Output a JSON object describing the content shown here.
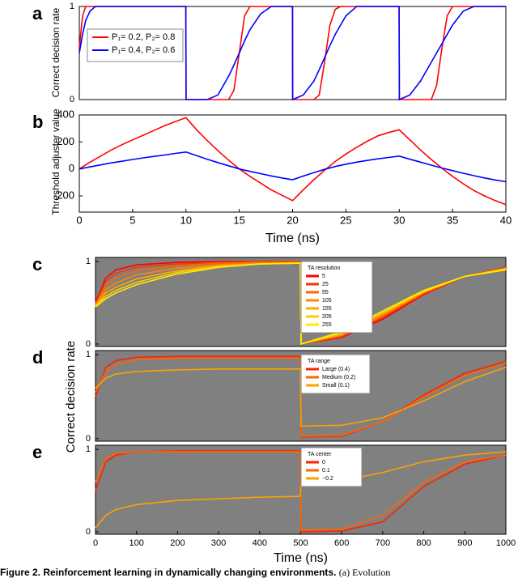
{
  "chart_data": [
    {
      "type": "line",
      "panel": "a",
      "ylabel": "Correct decision rate",
      "x": [
        0,
        0.3,
        0.6,
        1,
        1.5,
        2,
        5,
        9.99,
        10.01,
        12,
        13,
        14,
        14.5,
        15,
        15.5,
        16,
        17,
        18,
        19.99,
        20.01,
        21,
        22,
        22.5,
        23,
        23.5,
        24,
        24.5,
        25,
        26,
        29.99,
        30.01,
        31,
        32,
        33,
        33.5,
        34,
        34.5,
        35,
        36,
        37,
        40
      ],
      "xlim": [
        0,
        40
      ],
      "ylim": [
        0,
        1
      ],
      "yticks": [
        0,
        1
      ],
      "series": [
        {
          "name": "P₁= 0.2, P₂= 0.8",
          "color": "#ff0000",
          "values": [
            0.55,
            0.9,
            1,
            1,
            1,
            1,
            1,
            1,
            0,
            0,
            0,
            0,
            0.1,
            0.5,
            0.9,
            1,
            1,
            1,
            1,
            0,
            0,
            0,
            0.05,
            0.4,
            0.8,
            0.97,
            1,
            1,
            1,
            1,
            0,
            0,
            0,
            0,
            0.15,
            0.55,
            0.9,
            1,
            1,
            1,
            1
          ]
        },
        {
          "name": "P₁= 0.4, P₂= 0.6",
          "color": "#0000ff",
          "values": [
            0.5,
            0.7,
            0.85,
            0.95,
            1,
            1,
            1,
            1,
            0,
            0,
            0.05,
            0.25,
            0.37,
            0.5,
            0.63,
            0.75,
            0.92,
            1,
            1,
            0,
            0.05,
            0.2,
            0.32,
            0.45,
            0.58,
            0.7,
            0.8,
            0.9,
            1,
            1,
            0,
            0.05,
            0.2,
            0.4,
            0.5,
            0.6,
            0.7,
            0.8,
            0.95,
            1,
            1
          ]
        }
      ]
    },
    {
      "type": "line",
      "panel": "b",
      "ylabel": "Threshold adjuster value",
      "xlabel": "Time (ns)",
      "x": [
        0,
        1,
        2,
        3,
        4,
        5,
        6,
        7,
        8,
        9,
        10,
        11,
        12,
        13,
        14,
        15,
        16,
        17,
        18,
        19,
        20,
        21,
        22,
        23,
        24,
        25,
        26,
        27,
        28,
        29,
        30,
        31,
        32,
        33,
        34,
        35,
        36,
        37,
        38,
        39,
        40
      ],
      "xlim": [
        0,
        40
      ],
      "xticks": [
        0,
        5,
        10,
        15,
        20,
        25,
        30,
        35,
        40
      ],
      "ylim": [
        -320,
        400
      ],
      "yticks": [
        -200,
        0,
        200,
        400
      ],
      "series": [
        {
          "color": "#ff0000",
          "values": [
            0,
            50,
            95,
            140,
            180,
            215,
            250,
            285,
            320,
            350,
            380,
            290,
            210,
            135,
            65,
            0,
            -55,
            -105,
            -155,
            -195,
            -235,
            -155,
            -80,
            -10,
            55,
            110,
            160,
            205,
            245,
            270,
            290,
            215,
            140,
            70,
            5,
            -55,
            -110,
            -160,
            -200,
            -235,
            -265
          ]
        },
        {
          "color": "#0000ff",
          "values": [
            0,
            15,
            30,
            45,
            57,
            70,
            82,
            93,
            103,
            115,
            125,
            98,
            72,
            47,
            23,
            0,
            -18,
            -35,
            -52,
            -67,
            -80,
            -53,
            -27,
            -3,
            18,
            35,
            50,
            63,
            75,
            85,
            95,
            72,
            50,
            28,
            7,
            -13,
            -32,
            -50,
            -67,
            -82,
            -95
          ]
        }
      ]
    },
    {
      "type": "line",
      "panel": "c",
      "background": "#808080",
      "legend_title": "TA resolution",
      "x": [
        0,
        25,
        50,
        100,
        200,
        300,
        400,
        499,
        501,
        600,
        700,
        800,
        900,
        1000
      ],
      "xlim": [
        0,
        1000
      ],
      "ylim": [
        -0.03,
        1.05
      ],
      "yticks": [
        0,
        1
      ],
      "series": [
        {
          "name": "5",
          "color": "#ff0000",
          "values": [
            0.5,
            0.8,
            0.9,
            0.96,
            0.99,
            1,
            1,
            1,
            0,
            0.08,
            0.3,
            0.6,
            0.82,
            0.93
          ]
        },
        {
          "name": "25",
          "color": "#ff3300",
          "values": [
            0.49,
            0.76,
            0.86,
            0.93,
            0.97,
            0.99,
            1,
            1,
            0,
            0.09,
            0.32,
            0.61,
            0.82,
            0.93
          ]
        },
        {
          "name": "55",
          "color": "#ff6600",
          "values": [
            0.48,
            0.71,
            0.8,
            0.89,
            0.95,
            0.98,
            0.99,
            0.99,
            0,
            0.1,
            0.34,
            0.62,
            0.82,
            0.92
          ]
        },
        {
          "name": "105",
          "color": "#ff8800",
          "values": [
            0.47,
            0.66,
            0.74,
            0.84,
            0.92,
            0.96,
            0.98,
            0.99,
            0,
            0.11,
            0.35,
            0.63,
            0.82,
            0.92
          ]
        },
        {
          "name": "155",
          "color": "#ffaa00",
          "values": [
            0.46,
            0.62,
            0.69,
            0.79,
            0.89,
            0.95,
            0.97,
            0.98,
            0,
            0.12,
            0.37,
            0.63,
            0.82,
            0.91
          ]
        },
        {
          "name": "205",
          "color": "#ffcc00",
          "values": [
            0.46,
            0.58,
            0.65,
            0.75,
            0.87,
            0.94,
            0.97,
            0.98,
            0,
            0.13,
            0.38,
            0.64,
            0.82,
            0.91
          ]
        },
        {
          "name": "255",
          "color": "#ffee00",
          "values": [
            0.45,
            0.55,
            0.62,
            0.72,
            0.85,
            0.93,
            0.97,
            0.98,
            0,
            0.15,
            0.4,
            0.65,
            0.82,
            0.9
          ]
        }
      ]
    },
    {
      "type": "line",
      "panel": "d",
      "background": "#808080",
      "legend_title": "TA range",
      "ylabel": "Correct decision rate",
      "x": [
        0,
        25,
        50,
        100,
        200,
        300,
        400,
        499,
        501,
        600,
        700,
        800,
        900,
        1000
      ],
      "xlim": [
        0,
        1000
      ],
      "ylim": [
        -0.03,
        1.05
      ],
      "yticks": [
        0,
        1
      ],
      "series": [
        {
          "name": "Large (0.4)",
          "color": "#ff2200",
          "values": [
            0.5,
            0.85,
            0.93,
            0.97,
            0.98,
            0.98,
            0.98,
            0.98,
            0.02,
            0.03,
            0.2,
            0.52,
            0.78,
            0.92
          ]
        },
        {
          "name": "Medium (0.2)",
          "color": "#ff6600",
          "values": [
            0.55,
            0.8,
            0.88,
            0.94,
            0.96,
            0.96,
            0.96,
            0.96,
            0.03,
            0.04,
            0.2,
            0.5,
            0.75,
            0.9
          ]
        },
        {
          "name": "Small (0.1)",
          "color": "#ffa000",
          "values": [
            0.6,
            0.72,
            0.77,
            0.8,
            0.82,
            0.83,
            0.83,
            0.83,
            0.15,
            0.16,
            0.25,
            0.45,
            0.68,
            0.85
          ]
        }
      ]
    },
    {
      "type": "line",
      "panel": "e",
      "background": "#808080",
      "legend_title": "TA center",
      "xlabel": "Time (ns)",
      "x": [
        0,
        25,
        50,
        100,
        200,
        300,
        400,
        499,
        501,
        600,
        700,
        800,
        900,
        1000
      ],
      "xlim": [
        0,
        1000
      ],
      "xticks": [
        0,
        100,
        200,
        300,
        400,
        500,
        600,
        700,
        800,
        900,
        1000
      ],
      "ylim": [
        -0.03,
        1.05
      ],
      "yticks": [
        0,
        1
      ],
      "series": [
        {
          "name": "0",
          "color": "#ff2200",
          "values": [
            0.5,
            0.85,
            0.93,
            0.97,
            0.98,
            0.98,
            0.98,
            0.98,
            0,
            0.01,
            0.12,
            0.55,
            0.82,
            0.93
          ]
        },
        {
          "name": "0.1",
          "color": "#ff6600",
          "values": [
            0.6,
            0.9,
            0.95,
            0.97,
            0.97,
            0.97,
            0.97,
            0.97,
            0.02,
            0.03,
            0.2,
            0.6,
            0.85,
            0.93
          ]
        },
        {
          "name": "−0.2",
          "color": "#ffa000",
          "values": [
            0.05,
            0.2,
            0.27,
            0.33,
            0.38,
            0.4,
            0.42,
            0.43,
            0.58,
            0.62,
            0.72,
            0.85,
            0.93,
            0.97
          ]
        }
      ]
    }
  ],
  "caption": {
    "bold": "Figure 2. Reinforcement learning in dynamically changing environments.",
    "text": "(a) Evolution"
  }
}
